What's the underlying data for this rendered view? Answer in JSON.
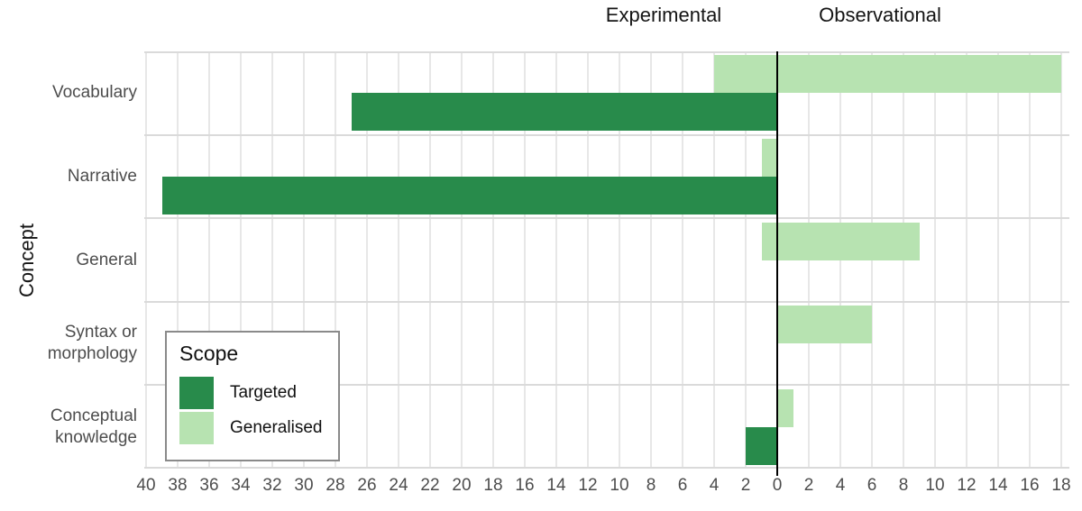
{
  "chart_data": {
    "type": "bar",
    "variant": "diverging-horizontal-grouped",
    "title_left": "Experimental",
    "title_right": "Observational",
    "ylabel": "Concept",
    "categories": [
      "Vocabulary",
      "Narrative",
      "General",
      "Syntax or morphology",
      "Conceptual knowledge"
    ],
    "series": [
      {
        "name": "Targeted",
        "color": "#288b4b",
        "row_slot": "bottom",
        "experimental": [
          27,
          39,
          0,
          0,
          2
        ],
        "observational": [
          0,
          0,
          0,
          0,
          0
        ]
      },
      {
        "name": "Generalised",
        "color": "#b7e3b1",
        "row_slot": "top",
        "experimental": [
          4,
          1,
          1,
          0,
          0
        ],
        "observational": [
          18,
          0,
          9,
          6,
          1
        ]
      }
    ],
    "x_axis": {
      "experimental_max": 40,
      "observational_max": 18,
      "tick_step": 2,
      "tick_labels_left": [
        "40",
        "38",
        "36",
        "34",
        "32",
        "30",
        "28",
        "26",
        "24",
        "22",
        "20",
        "18",
        "16",
        "14",
        "12",
        "10",
        "8",
        "6",
        "4",
        "2"
      ],
      "zero_label": "0",
      "tick_labels_right": [
        "2",
        "4",
        "6",
        "8",
        "10",
        "12",
        "14",
        "16",
        "18"
      ]
    },
    "grid": true,
    "zero_line_color": "#000000",
    "legend_title": "Scope",
    "legend_position": "inside bottom-left"
  }
}
